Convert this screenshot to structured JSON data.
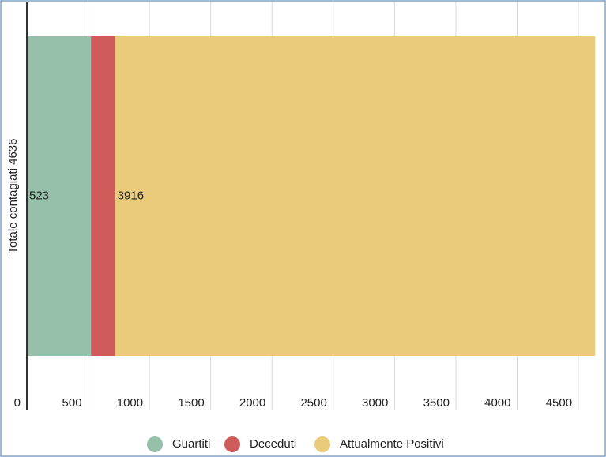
{
  "chart_data": {
    "type": "stacked-bar",
    "orientation": "horizontal",
    "categories": [
      "Totale contagiati 4636"
    ],
    "series": [
      {
        "name": "Guartiti",
        "color": "#96c0a9",
        "values": [
          523
        ],
        "data_label": true
      },
      {
        "name": "Deceduti",
        "color": "#cf5b5b",
        "values": [
          197
        ],
        "data_label": false
      },
      {
        "name": "Attualmente Positivi",
        "color": "#e9cb79",
        "values": [
          3916
        ],
        "data_label": true
      }
    ],
    "xlim": [
      0,
      4680
    ],
    "xticks": [
      0,
      500,
      1000,
      1500,
      2000,
      2500,
      3000,
      3500,
      4000,
      4500
    ],
    "grid": true,
    "legend": "bottom"
  }
}
